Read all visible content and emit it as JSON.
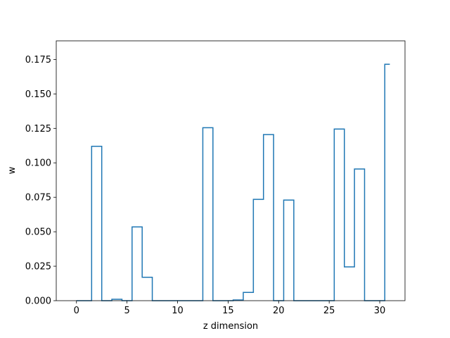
{
  "chart_data": {
    "type": "step",
    "title": "",
    "xlabel": "z dimension",
    "ylabel": "w",
    "xlim": [
      -2,
      32.5
    ],
    "ylim": [
      0,
      0.1885
    ],
    "xticks": [
      0,
      5,
      10,
      15,
      20,
      25,
      30
    ],
    "yticks": [
      0.0,
      0.025,
      0.05,
      0.075,
      0.1,
      0.125,
      0.15,
      0.175
    ],
    "ytick_labels": [
      "0.000",
      "0.025",
      "0.050",
      "0.075",
      "0.100",
      "0.125",
      "0.150",
      "0.175"
    ],
    "grid": false,
    "legend": "none",
    "color": "#1f77b4",
    "x": [
      0,
      1,
      2,
      3,
      4,
      5,
      6,
      7,
      8,
      9,
      10,
      11,
      12,
      13,
      14,
      15,
      16,
      17,
      18,
      19,
      20,
      21,
      22,
      23,
      24,
      25,
      26,
      27,
      28,
      29,
      30,
      31
    ],
    "values": [
      0.0,
      0.0,
      0.112,
      0.0,
      0.001,
      0.0,
      0.0535,
      0.017,
      0.0,
      0.0,
      0.0,
      0.0,
      0.0,
      0.1255,
      0.0,
      0.0,
      0.0005,
      0.006,
      0.0735,
      0.1205,
      0.0,
      0.073,
      0.0,
      0.0,
      0.0,
      0.0,
      0.1245,
      0.0245,
      0.0955,
      0.0,
      0.0,
      0.1715
    ]
  }
}
